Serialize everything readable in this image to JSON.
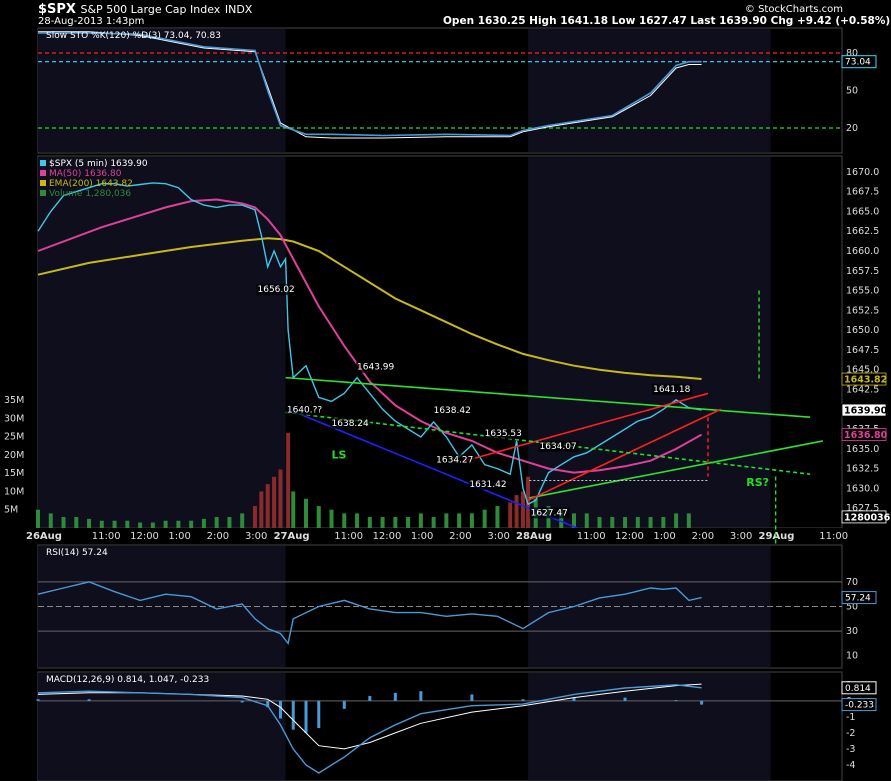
{
  "header": {
    "symbol": "$SPX",
    "name": "S&P 500 Large Cap Index",
    "exchange": "INDX",
    "datetime": "28-Aug-2013 1:43pm",
    "copyright": "© StockCharts.com",
    "quote_line": "Open 1630.25  High 1641.18  Low 1627.47  Last 1639.90  Chg +9.42 (+0.58%)"
  },
  "colors": {
    "background": "#000000",
    "panel_bg": "#0e0e1c",
    "price": "#3fc7e8",
    "ma50": "#e0409a",
    "ema200": "#c8b818",
    "volume_up": "#2e8b3a",
    "volume_down": "#8b2a2a",
    "trend_green": "#2fe02f",
    "trend_red": "#ff2020",
    "trend_blue": "#2020ff",
    "dashed_green": "#22e022",
    "dashed_red": "#ff2020",
    "dashed_cyan": "#30e0ff",
    "macd_line": "#4a9ad8",
    "signal_line": "#ffffff"
  },
  "chart_data": [
    {
      "type": "line",
      "panel": "stochastic",
      "legend": "Slow STO %K(120) %D(3) 73.04, 70.83",
      "ylim": [
        0,
        100
      ],
      "yticks": [
        "80",
        "50",
        "20"
      ],
      "last_value_label": "73.04",
      "reference_lines": [
        {
          "value": 80,
          "color": "#ff2020"
        },
        {
          "value": 73.04,
          "color": "#30e0ff"
        },
        {
          "value": 20,
          "color": "#22e022"
        }
      ],
      "series": [
        {
          "name": "%K",
          "x": [
            0,
            4,
            8,
            13,
            17,
            18,
            19,
            21,
            23,
            27,
            32,
            37,
            38,
            40,
            45,
            48,
            50,
            51,
            52
          ],
          "values": [
            96,
            96,
            95,
            85,
            82,
            50,
            22,
            15,
            15,
            14,
            15,
            14,
            18,
            22,
            30,
            48,
            70,
            73.04,
            73.04
          ]
        },
        {
          "name": "%D",
          "x": [
            0,
            4,
            8,
            13,
            17,
            18,
            19,
            21,
            23,
            27,
            32,
            37,
            38,
            40,
            45,
            48,
            50,
            51,
            52
          ],
          "values": [
            97,
            97,
            94,
            84,
            81,
            53,
            24,
            13,
            12,
            12,
            13,
            13,
            17,
            21,
            29,
            46,
            68,
            70.83,
            70.83
          ]
        }
      ]
    },
    {
      "type": "line",
      "panel": "price",
      "legend": [
        "$SPX (5 min) 1639.90",
        "MA(50) 1636.80",
        "EMA(200) 1643.82",
        "Volume 1,280,036"
      ],
      "ylim": [
        1625,
        1672
      ],
      "yticks": [
        "1670.0",
        "1667.5",
        "1665.0",
        "1662.5",
        "1660.0",
        "1657.5",
        "1655.0",
        "1652.5",
        "1650.0",
        "1647.5",
        "1645.0",
        "1642.5",
        "1640.0",
        "1637.5",
        "1635.0",
        "1632.5",
        "1630.0",
        "1627.5"
      ],
      "volume_ticks": [
        "35M",
        "30M",
        "25M",
        "20M",
        "15M",
        "10M",
        "5M"
      ],
      "volume_max": 35,
      "xticks": [
        {
          "x": 0,
          "label": "26Aug",
          "bold": true
        },
        {
          "x": 5,
          "label": "11:00"
        },
        {
          "x": 8,
          "label": "12:00"
        },
        {
          "x": 11,
          "label": "1:00"
        },
        {
          "x": 14,
          "label": "2:00"
        },
        {
          "x": 17,
          "label": "3:00"
        },
        {
          "x": 19.4,
          "label": "27Aug",
          "bold": true
        },
        {
          "x": 24,
          "label": "11:00"
        },
        {
          "x": 27,
          "label": "12:00"
        },
        {
          "x": 30,
          "label": "1:00"
        },
        {
          "x": 33,
          "label": "2:00"
        },
        {
          "x": 36,
          "label": "3:00"
        },
        {
          "x": 38.4,
          "label": "28Aug",
          "bold": true
        },
        {
          "x": 43,
          "label": "11:00"
        },
        {
          "x": 46,
          "label": "12:00"
        },
        {
          "x": 49,
          "label": "1:00"
        },
        {
          "x": 52,
          "label": "2:00"
        },
        {
          "x": 55,
          "label": "3:00"
        },
        {
          "x": 57.4,
          "label": "29Aug",
          "bold": true
        },
        {
          "x": 62,
          "label": "11:00"
        }
      ],
      "shaded_ranges": [
        [
          0,
          19.4
        ],
        [
          38.4,
          57.4
        ]
      ],
      "series": [
        {
          "name": "$SPX (5 min)",
          "x": [
            0,
            1,
            2,
            3,
            4,
            5,
            6,
            7,
            8,
            9,
            10,
            11,
            12,
            13,
            14,
            15,
            16,
            17,
            17.5,
            18,
            18.5,
            19,
            19.4,
            19.6,
            20,
            21,
            22,
            23,
            24,
            25,
            26,
            27,
            28,
            29,
            30,
            31,
            32,
            33,
            34,
            35,
            36,
            37,
            37.5,
            38,
            38.4,
            39,
            40,
            41,
            42,
            43,
            44,
            45,
            46,
            47,
            48,
            49,
            50,
            51,
            52
          ],
          "values": [
            1662.5,
            1665,
            1667,
            1667.5,
            1668,
            1668.5,
            1668.5,
            1668.2,
            1668.4,
            1668.6,
            1668.5,
            1668,
            1666.5,
            1665.8,
            1665.5,
            1665.8,
            1665.8,
            1665.2,
            1662,
            1658,
            1660,
            1658,
            1659,
            1650,
            1644,
            1645.5,
            1641.5,
            1641,
            1642,
            1643.99,
            1642,
            1640,
            1638.5,
            1637.5,
            1636.5,
            1638.4,
            1636.5,
            1634,
            1635.5,
            1633,
            1632.5,
            1631.8,
            1636,
            1630,
            1628,
            1628.5,
            1632,
            1633,
            1634,
            1634.5,
            1635.5,
            1636.5,
            1637.5,
            1638.5,
            1639,
            1640,
            1641.18,
            1640.2,
            1639.9
          ]
        },
        {
          "name": "MA(50)",
          "x": [
            0,
            5,
            10,
            12,
            14,
            16,
            17,
            18,
            19,
            20,
            21,
            22,
            24,
            26,
            28,
            30,
            32,
            34,
            36,
            38,
            40,
            42,
            44,
            46,
            48,
            50,
            52
          ],
          "values": [
            1660,
            1663,
            1665.5,
            1666.3,
            1666.5,
            1666,
            1665.5,
            1664,
            1662,
            1659,
            1656,
            1653,
            1648,
            1643.5,
            1640.5,
            1638.5,
            1637,
            1636,
            1634.5,
            1633.5,
            1632.5,
            1632,
            1632.3,
            1632.8,
            1633.5,
            1635,
            1636.8
          ]
        },
        {
          "name": "EMA(200)",
          "x": [
            0,
            4,
            8,
            12,
            16,
            18,
            19,
            20,
            22,
            24,
            26,
            28,
            30,
            32,
            34,
            36,
            38,
            40,
            42,
            44,
            46,
            48,
            50,
            52
          ],
          "values": [
            1657,
            1658.5,
            1659.5,
            1660.5,
            1661.3,
            1661.6,
            1661.5,
            1661.2,
            1660,
            1658,
            1656,
            1654,
            1652.5,
            1651,
            1649.5,
            1648.2,
            1647,
            1646.2,
            1645.5,
            1645,
            1644.6,
            1644.3,
            1644.1,
            1643.82
          ]
        }
      ],
      "volume": {
        "x": [
          0,
          1,
          2,
          3,
          4,
          5,
          6,
          7,
          8,
          9,
          10,
          11,
          12,
          13,
          14,
          15,
          16,
          17,
          17.5,
          18,
          18.5,
          19,
          19.6,
          20,
          21,
          22,
          23,
          24,
          25,
          26,
          27,
          28,
          29,
          30,
          31,
          32,
          33,
          34,
          35,
          36,
          37,
          37.5,
          38,
          38.4,
          39,
          40,
          41,
          42,
          43,
          44,
          45,
          46,
          47,
          48,
          49,
          50,
          51
        ],
        "values": [
          5,
          4,
          3,
          3,
          2.5,
          2,
          2,
          2,
          1.5,
          1.5,
          2,
          2,
          2,
          2.5,
          3,
          3,
          4,
          6,
          10,
          12,
          14,
          16,
          26,
          10,
          8,
          6,
          5,
          4,
          4,
          3,
          3,
          3,
          3,
          4,
          3,
          4,
          4,
          4,
          5,
          6,
          7,
          9,
          10,
          14,
          8,
          6,
          5,
          4,
          4,
          3,
          3,
          3,
          3,
          3,
          3,
          4,
          4
        ]
      },
      "trendlines": [
        {
          "color": "#2fe02f",
          "x1": 19.4,
          "y1": 1644,
          "x2": 60.5,
          "y2": 1639
        },
        {
          "color": "#2fe02f",
          "x1": 38.5,
          "y1": 1628.8,
          "x2": 61.5,
          "y2": 1636
        },
        {
          "color": "#2020ff",
          "x1": 19.6,
          "y1": 1640,
          "x2": 43,
          "y2": 1624.5
        },
        {
          "color": "#ff2020",
          "x1": 38.4,
          "y1": 1628.5,
          "x2": 53.5,
          "y2": 1640
        },
        {
          "color": "#ff2020",
          "x1": 33.5,
          "y1": 1633.5,
          "x2": 52.5,
          "y2": 1642
        },
        {
          "color": "#22e022",
          "x1": 19.4,
          "y1": 1639.6,
          "x2": 60.5,
          "y2": 1631.8,
          "dashed": true
        }
      ],
      "dashed_verticals": [
        {
          "color": "#ff2020",
          "x": 52.5,
          "y1": 1639,
          "y2": 1631.5
        },
        {
          "color": "#22e022",
          "x": 56.5,
          "y1": 1655,
          "y2": 1643.5
        }
      ],
      "price_labels": [
        {
          "text": "1656.02",
          "x": 17.2,
          "y": 1654.8
        },
        {
          "text": "1643.99",
          "x": 25,
          "y": 1645
        },
        {
          "text": "1640.??",
          "x": 19.5,
          "y": 1639.6
        },
        {
          "text": "1638.24",
          "x": 23,
          "y": 1637.9
        },
        {
          "text": "1638.42",
          "x": 31,
          "y": 1639.5
        },
        {
          "text": "1635.53",
          "x": 35,
          "y": 1636.6
        },
        {
          "text": "1634.27",
          "x": 31.2,
          "y": 1633.3
        },
        {
          "text": "1634.07",
          "x": 39.3,
          "y": 1635
        },
        {
          "text": "1631.42",
          "x": 33.8,
          "y": 1630.2
        },
        {
          "text": "1627.47",
          "x": 38.6,
          "y": 1626.6
        },
        {
          "text": "1641.18",
          "x": 48.2,
          "y": 1642.2
        }
      ],
      "annotations": [
        {
          "text": "LS",
          "x": 23,
          "y": 1633.8,
          "color": "#22e022"
        },
        {
          "text": "RS?",
          "x": 55.5,
          "y": 1630.3,
          "color": "#22e022"
        }
      ],
      "right_labels": [
        {
          "text": "1643.82",
          "y": 1643.82,
          "bg": "#000000",
          "fg": "#c8b818"
        },
        {
          "text": "1639.90",
          "y": 1639.9,
          "bg": "#ffffff",
          "fg": "#000000"
        },
        {
          "text": "1636.80",
          "y": 1636.8,
          "bg": "#000000",
          "fg": "#e0409a"
        },
        {
          "text": "1280036",
          "y": 1626.4,
          "bg": "#000000",
          "fg": "#ffffff"
        }
      ]
    },
    {
      "type": "line",
      "panel": "rsi",
      "legend": "RSI(14) 57.24",
      "ylim": [
        0,
        100
      ],
      "yticks": [
        "70",
        "50",
        "30",
        "10"
      ],
      "last_value_label": "57.24",
      "series": [
        {
          "name": "RSI(14)",
          "x": [
            0,
            2,
            4,
            6,
            8,
            10,
            12,
            14,
            16,
            17,
            18,
            19,
            19.6,
            20,
            22,
            24,
            26,
            28,
            30,
            32,
            34,
            36,
            38,
            40,
            42,
            44,
            46,
            48,
            49,
            50,
            51,
            52
          ],
          "values": [
            60,
            65,
            70,
            62,
            55,
            60,
            58,
            48,
            52,
            40,
            32,
            28,
            20,
            40,
            50,
            55,
            48,
            45,
            45,
            42,
            44,
            42,
            32,
            45,
            50,
            57,
            60,
            65,
            64,
            65,
            55,
            57.24
          ]
        }
      ]
    },
    {
      "type": "line",
      "panel": "macd",
      "legend": "MACD(12,26,9) 0.814, 1.047, -0.233",
      "ylim": [
        -5,
        1.8
      ],
      "yticks": [
        "1",
        "0",
        "-1",
        "-2",
        "-3",
        "-4"
      ],
      "last_value_labels": [
        "0.814",
        "-0.233"
      ],
      "series": [
        {
          "name": "MACD",
          "x": [
            0,
            4,
            8,
            12,
            16,
            18,
            19,
            20,
            21,
            22,
            24,
            26,
            28,
            30,
            34,
            38,
            42,
            46,
            50,
            52
          ],
          "values": [
            0.5,
            0.6,
            0.5,
            0.4,
            0.2,
            -0.3,
            -1.5,
            -3,
            -4,
            -4.5,
            -3.5,
            -2.3,
            -1.5,
            -0.8,
            -0.3,
            -0.2,
            0.4,
            0.8,
            1.0,
            0.814
          ]
        },
        {
          "name": "Signal",
          "x": [
            0,
            4,
            8,
            12,
            16,
            18,
            19,
            20,
            21,
            22,
            24,
            26,
            28,
            30,
            34,
            38,
            42,
            46,
            50,
            52
          ],
          "values": [
            0.4,
            0.5,
            0.5,
            0.4,
            0.3,
            0.1,
            -0.4,
            -1.2,
            -2,
            -2.8,
            -3,
            -2.6,
            -2,
            -1.4,
            -0.7,
            -0.3,
            0.2,
            0.6,
            0.95,
            1.047
          ]
        }
      ]
    }
  ]
}
